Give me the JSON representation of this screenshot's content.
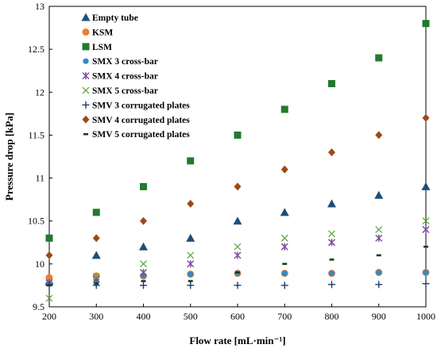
{
  "chart_data": {
    "type": "scatter",
    "title": "",
    "xlabel": "Flow rate [mL·min⁻¹]",
    "ylabel": "Pressure drop [kPa]",
    "xlim": [
      200,
      1000
    ],
    "ylim": [
      9.5,
      13
    ],
    "x_ticks": [
      200,
      300,
      400,
      500,
      600,
      700,
      800,
      900,
      1000
    ],
    "y_ticks": [
      9.5,
      10,
      10.5,
      11,
      11.5,
      12,
      12.5,
      13
    ],
    "x_tick_labels": [
      "200",
      "300",
      "400",
      "500",
      "600",
      "700",
      "800",
      "900",
      "1000"
    ],
    "y_tick_labels": [
      "9.5",
      "10",
      "10.5",
      "11",
      "11.5",
      "12",
      "12.5",
      "13"
    ],
    "grid": false,
    "legend_position": "top-left",
    "x": [
      200,
      300,
      400,
      500,
      600,
      700,
      800,
      900,
      1000
    ],
    "series": [
      {
        "name": "Empty tube",
        "marker": "triangle",
        "color": "#1F4E79",
        "values": [
          9.8,
          10.1,
          10.2,
          10.3,
          10.5,
          10.6,
          10.7,
          10.8,
          10.9
        ]
      },
      {
        "name": "KSM",
        "marker": "circle",
        "color": "#ED7D31",
        "values": [
          9.84,
          9.86,
          9.86,
          9.88,
          9.89,
          9.89,
          9.89,
          9.9,
          9.9
        ]
      },
      {
        "name": "LSM",
        "marker": "square",
        "color": "#217A2E",
        "values": [
          10.3,
          10.6,
          10.9,
          11.2,
          11.5,
          11.8,
          12.1,
          12.4,
          12.8
        ]
      },
      {
        "name": "SMX 3 cross-bar",
        "marker": "circle-small",
        "color": "#2E8BC9",
        "values": [
          9.78,
          9.8,
          9.86,
          9.88,
          9.89,
          9.89,
          9.89,
          9.9,
          9.9
        ]
      },
      {
        "name": "SMX 4 cross-bar",
        "marker": "asterisk",
        "color": "#7B4FA0",
        "values": [
          9.78,
          9.82,
          9.9,
          10.0,
          10.1,
          10.2,
          10.25,
          10.3,
          10.4
        ]
      },
      {
        "name": "SMX 5 cross-bar",
        "marker": "x",
        "color": "#5FAE3E",
        "values": [
          9.6,
          9.85,
          10.0,
          10.1,
          10.2,
          10.3,
          10.35,
          10.4,
          10.5
        ]
      },
      {
        "name": "SMV 3 corrugated plates",
        "marker": "plus",
        "color": "#1F3D6B",
        "values": [
          9.75,
          9.75,
          9.75,
          9.75,
          9.75,
          9.75,
          9.76,
          9.76,
          9.77
        ]
      },
      {
        "name": "SMV 4 corrugated plates",
        "marker": "diamond",
        "color": "#9C4A1A",
        "values": [
          10.1,
          10.3,
          10.5,
          10.7,
          10.9,
          11.1,
          11.3,
          11.5,
          11.7
        ]
      },
      {
        "name": "SMV 5 corrugated plates",
        "marker": "dash",
        "color": "#1E3A1E",
        "values": [
          9.75,
          9.77,
          9.8,
          9.8,
          9.9,
          10.0,
          10.05,
          10.1,
          10.2
        ]
      }
    ]
  }
}
